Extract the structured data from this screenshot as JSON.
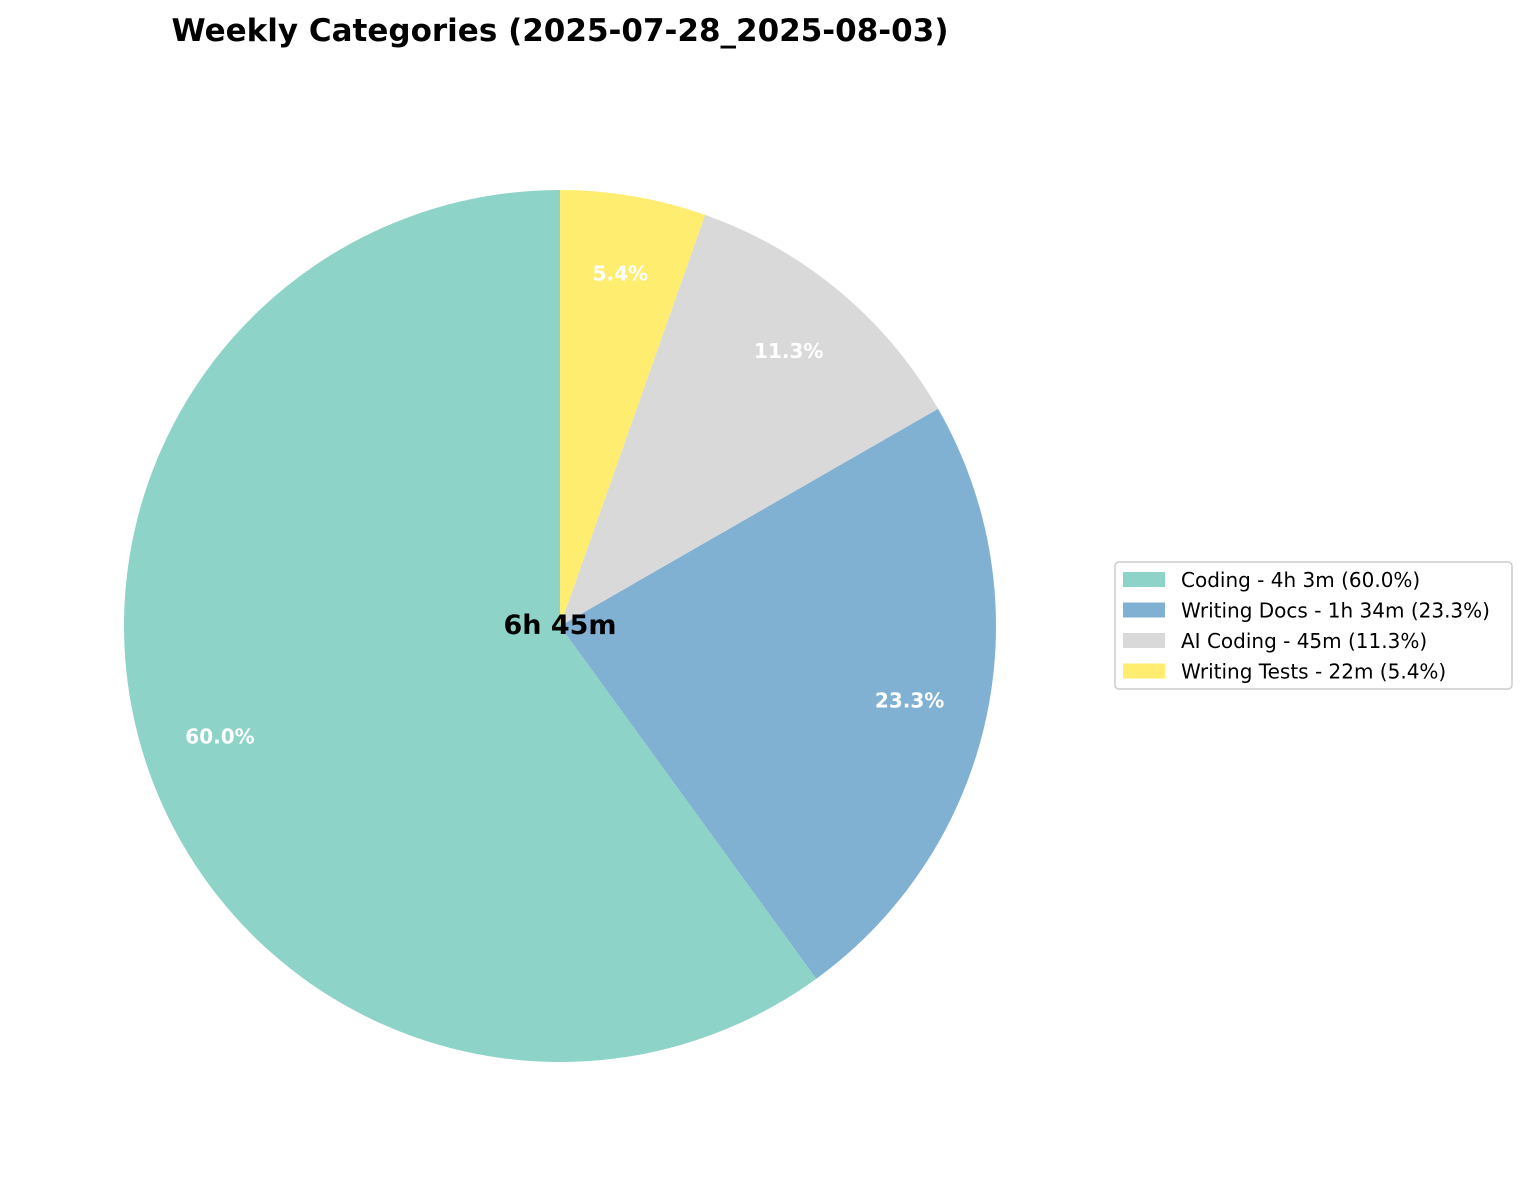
{
  "chart_data": {
    "type": "pie",
    "title": "Weekly Categories (2025-07-28_2025-08-03)",
    "center_label": "6h 45m",
    "start_angle_deg": 90,
    "direction": "counterclockwise",
    "slices": [
      {
        "name": "Coding",
        "value": 60.0,
        "pct_label": "60.0%",
        "legend": "Coding - 4h 3m (60.0%)",
        "color": "#8dd3c7"
      },
      {
        "name": "Writing Docs",
        "value": 23.3,
        "pct_label": "23.3%",
        "legend": "Writing Docs - 1h 34m (23.3%)",
        "color": "#80b1d3"
      },
      {
        "name": "AI Coding",
        "value": 11.3,
        "pct_label": "11.3%",
        "legend": "AI Coding - 45m (11.3%)",
        "color": "#d9d9d9"
      },
      {
        "name": "Writing Tests",
        "value": 5.4,
        "pct_label": "5.4%",
        "legend": "Writing Tests - 22m (5.4%)",
        "color": "#ffed6f"
      }
    ],
    "legend_position": "center-right"
  }
}
